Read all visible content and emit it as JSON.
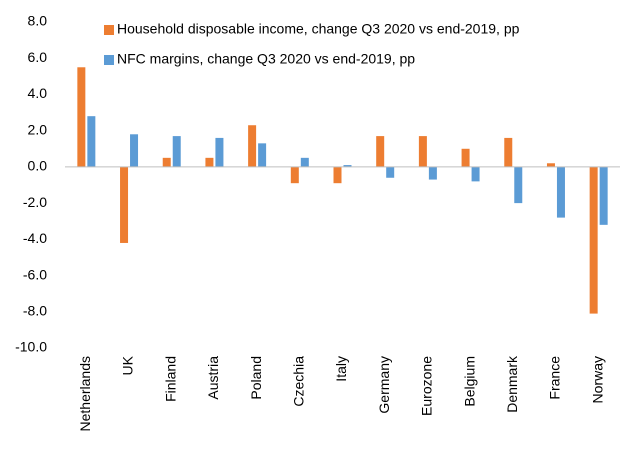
{
  "chart_data": {
    "type": "bar",
    "categories": [
      "Netherlands",
      "UK",
      "Finland",
      "Austria",
      "Poland",
      "Czechia",
      "Italy",
      "Germany",
      "Eurozone",
      "Belgium",
      "Denmark",
      "France",
      "Norway"
    ],
    "series": [
      {
        "name": "Household disposable income, change Q3 2020 vs end-2019, pp",
        "color": "#ed7d31",
        "values": [
          5.5,
          -4.2,
          0.5,
          0.5,
          2.3,
          -0.9,
          -0.9,
          1.7,
          1.7,
          1.0,
          1.6,
          0.2,
          -8.1
        ]
      },
      {
        "name": "NFC margins, change Q3 2020 vs end-2019, pp",
        "color": "#5b9bd5",
        "values": [
          2.8,
          1.8,
          1.7,
          1.6,
          1.3,
          0.5,
          0.1,
          -0.6,
          -0.7,
          -0.8,
          -2.0,
          -2.8,
          -3.2
        ]
      }
    ],
    "ylim": [
      -10,
      8
    ],
    "yticks": [
      {
        "value": -10,
        "label": "-10.0"
      },
      {
        "value": -8,
        "label": "-8.0"
      },
      {
        "value": -6,
        "label": "-6.0"
      },
      {
        "value": -4,
        "label": "-4.0"
      },
      {
        "value": -2,
        "label": "-2.0"
      },
      {
        "value": 0,
        "label": "0.0"
      },
      {
        "value": 2,
        "label": "2.0"
      },
      {
        "value": 4,
        "label": "4.0"
      },
      {
        "value": 6,
        "label": "6.0"
      },
      {
        "value": 8,
        "label": "8.0"
      }
    ],
    "grid": false,
    "legend": "top"
  }
}
